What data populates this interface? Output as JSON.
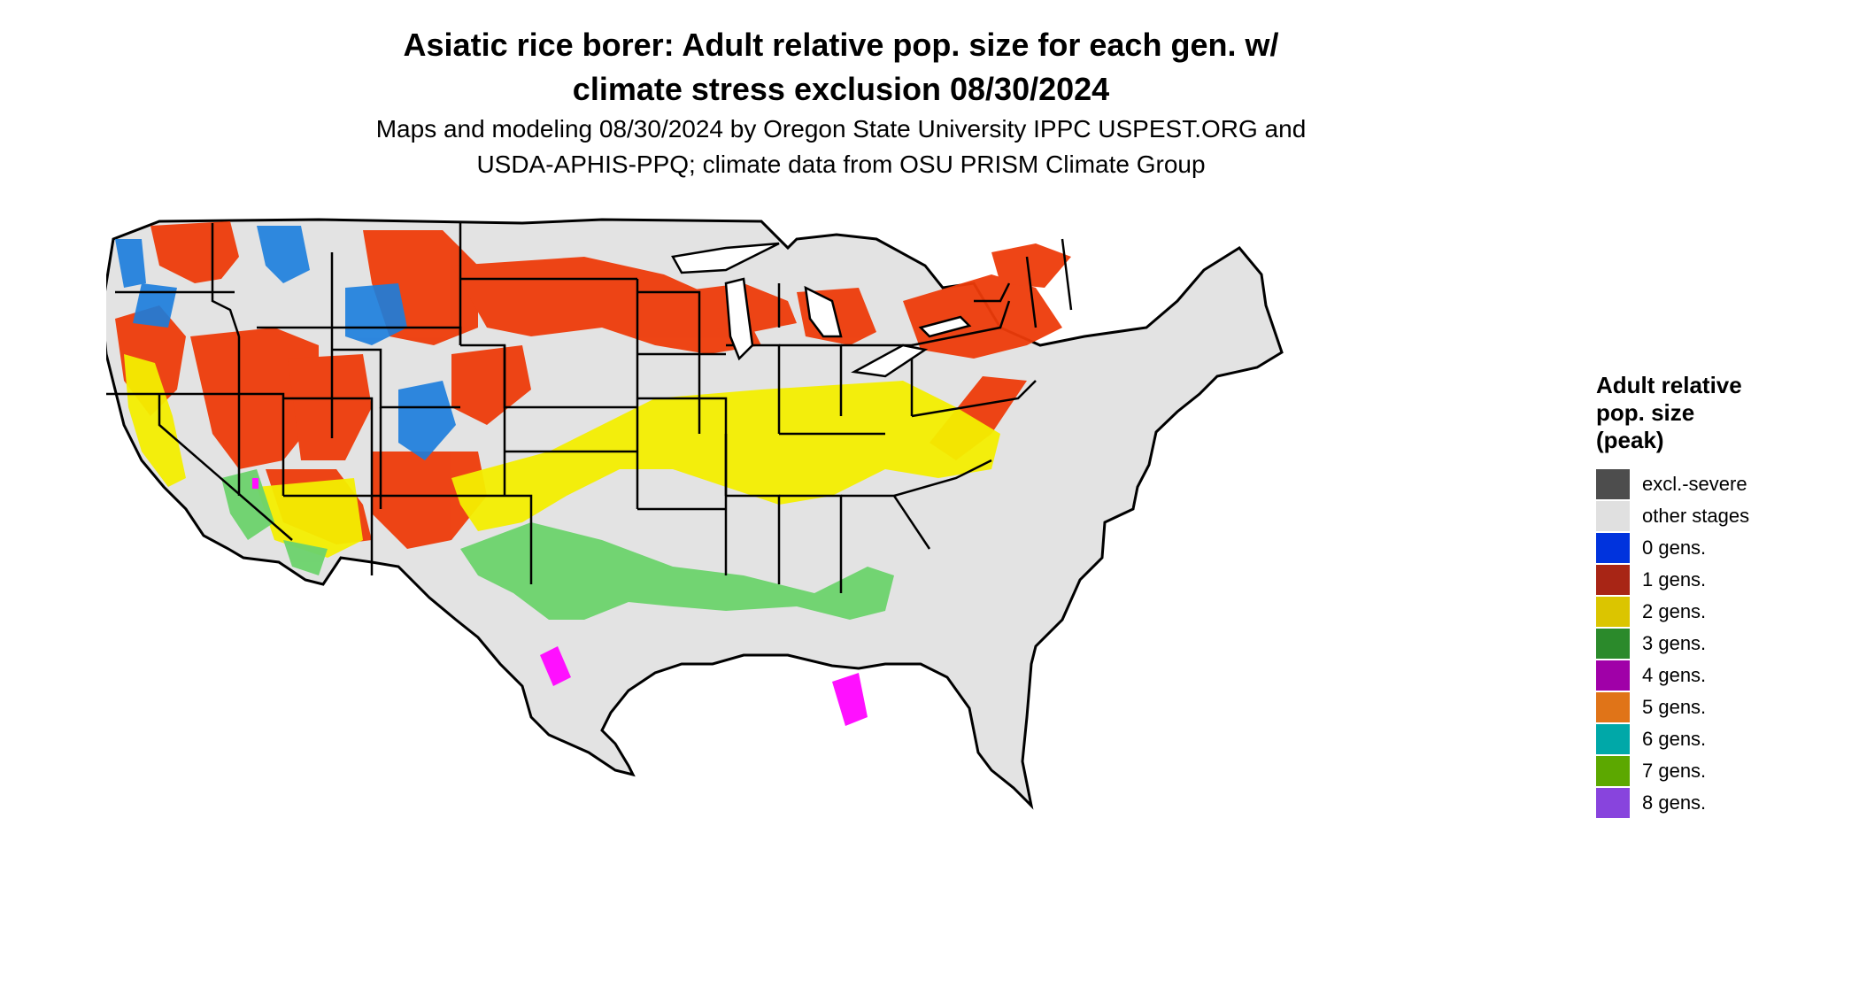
{
  "title_line1": "Asiatic rice borer: Adult relative pop. size for each gen. w/",
  "title_line2": "climate stress exclusion 08/30/2024",
  "subtitle_line1": "Maps and modeling 08/30/2024 by Oregon State University IPPC USPEST.ORG and",
  "subtitle_line2": "USDA-APHIS-PPQ; climate data from OSU PRISM Climate Group",
  "legend": {
    "title_line1": "Adult relative",
    "title_line2": "pop. size",
    "title_line3": "(peak)",
    "items": [
      {
        "label": "excl.-severe",
        "color": "#4d4d4d"
      },
      {
        "label": "other stages",
        "color": "#e0e0e0"
      },
      {
        "label": "0 gens.",
        "color": "#0033dd"
      },
      {
        "label": "1 gens.",
        "color": "#a82515"
      },
      {
        "label": "2 gens.",
        "color": "#dbc500"
      },
      {
        "label": "3 gens.",
        "color": "#2b8a2b"
      },
      {
        "label": "4 gens.",
        "color": "#a000a8"
      },
      {
        "label": "5 gens.",
        "color": "#e07418"
      },
      {
        "label": "6 gens.",
        "color": "#00a8a8"
      },
      {
        "label": "7 gens.",
        "color": "#5ca800"
      },
      {
        "label": "8 gens.",
        "color": "#8844dd"
      }
    ]
  },
  "map_colors": {
    "land": "#e3e3e3",
    "gen0": "#1a7ddd",
    "gen1": "#ee3c0a",
    "gen2": "#f3ee00",
    "gen3": "#6cd36c",
    "gen4": "#ff10ff",
    "border": "#000000"
  }
}
